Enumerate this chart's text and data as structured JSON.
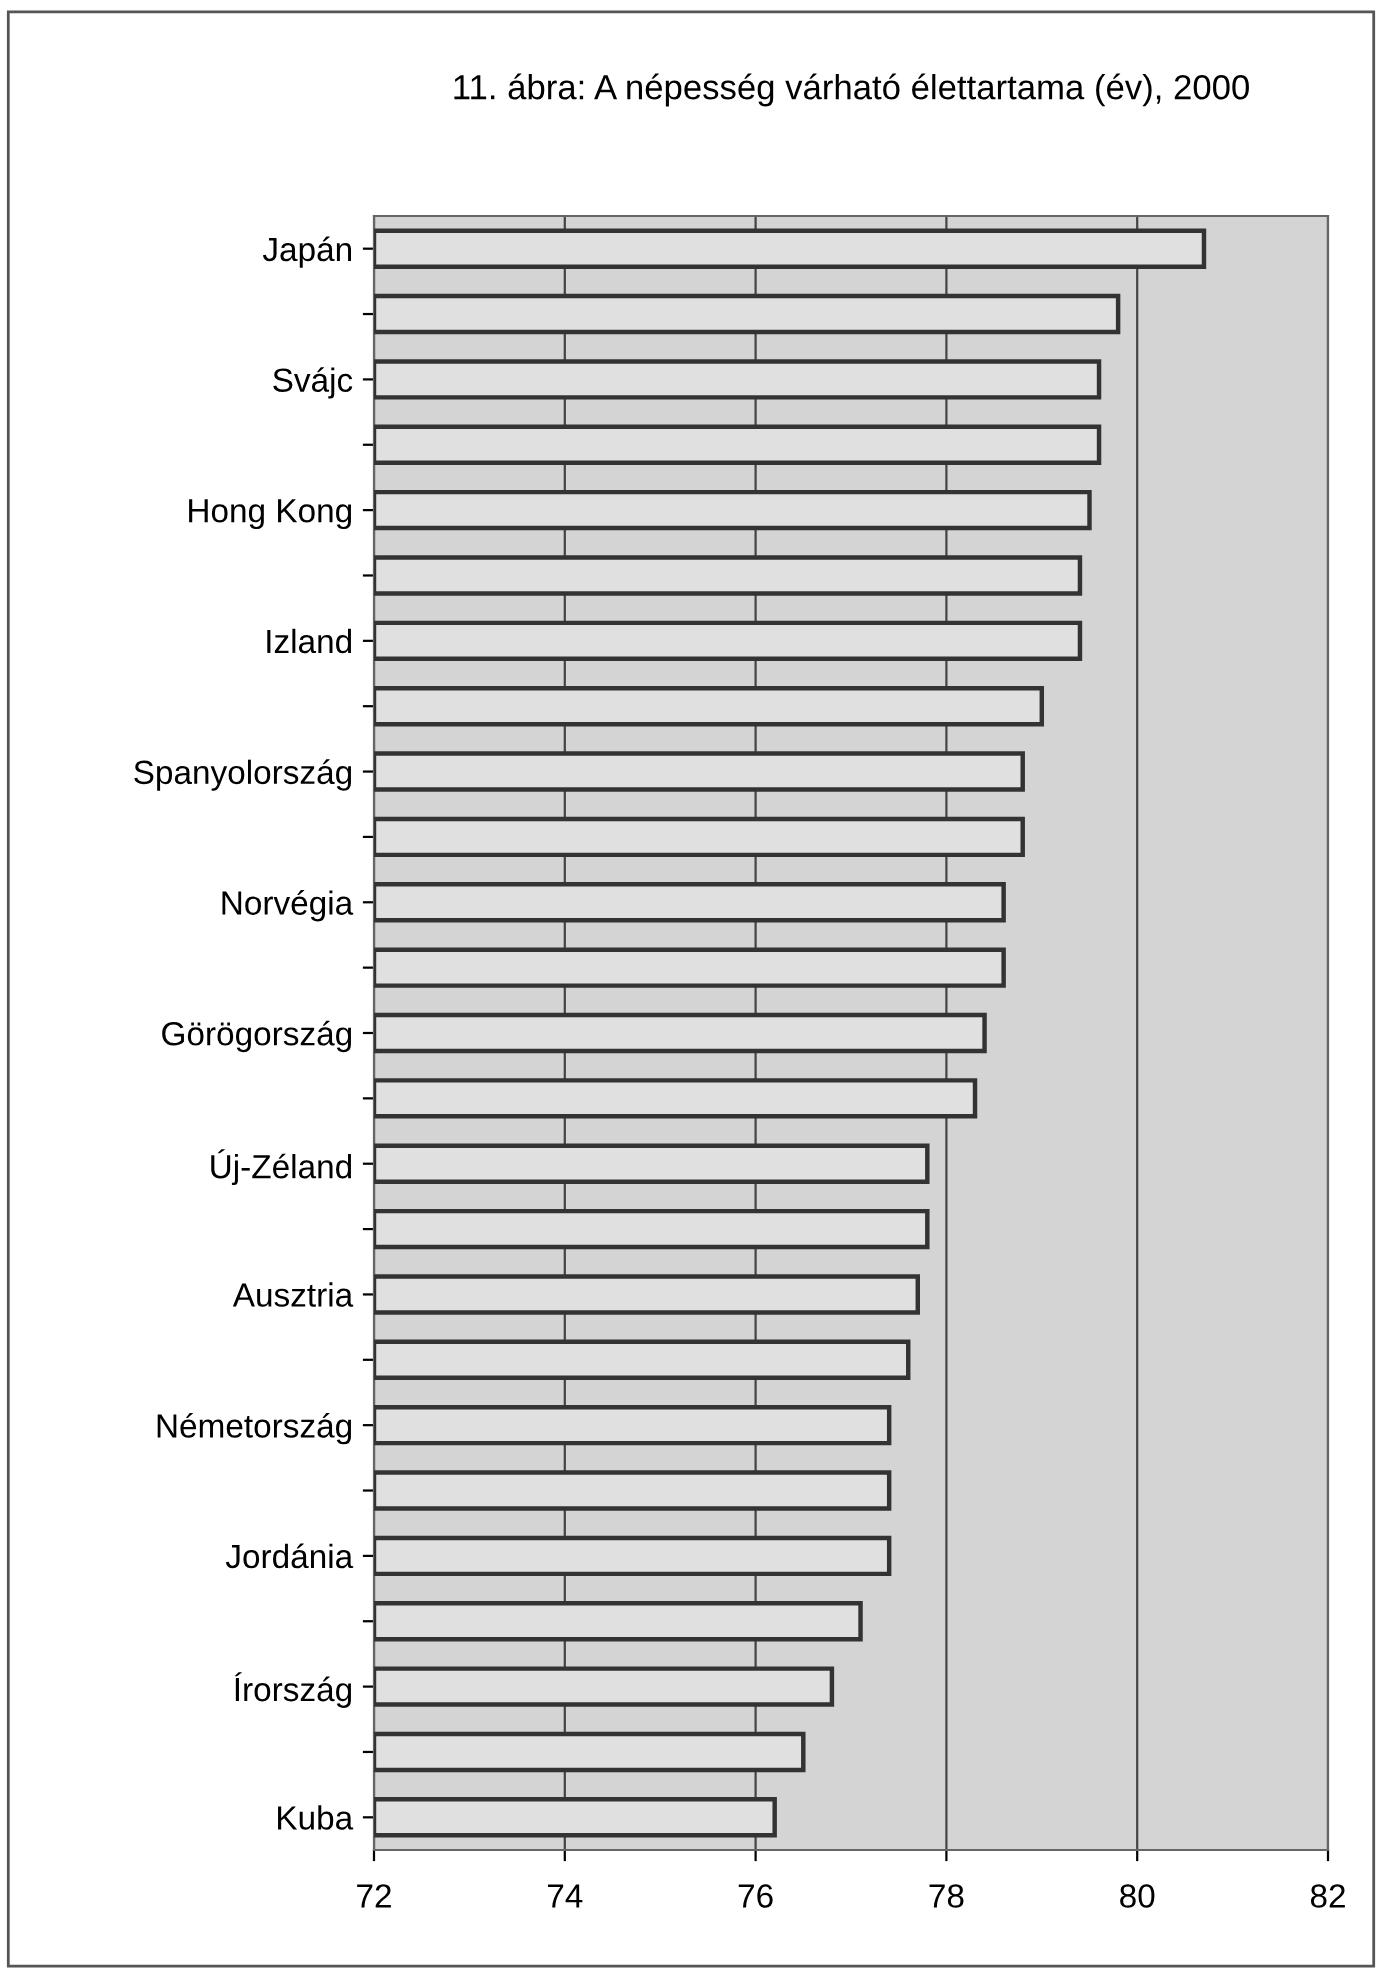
{
  "chart_data": {
    "type": "bar",
    "orientation": "horizontal",
    "title": "11. ábra: A népesség várható élettartama (év), 2000",
    "categories": [
      "Japán",
      null,
      "Svájc",
      null,
      "Hong Kong",
      null,
      "Izland",
      null,
      "Spanyolország",
      null,
      "Norvégia",
      null,
      "Görögország",
      null,
      "Új-Zéland",
      null,
      "Ausztria",
      null,
      "Németország",
      null,
      "Jordánia",
      null,
      "Írország",
      null,
      "Kuba"
    ],
    "values": [
      80.7,
      79.8,
      79.6,
      79.6,
      79.5,
      79.4,
      79.4,
      79.0,
      78.8,
      78.8,
      78.6,
      78.6,
      78.4,
      78.3,
      77.8,
      77.8,
      77.7,
      77.6,
      77.4,
      77.4,
      77.4,
      77.1,
      76.8,
      76.5,
      76.2
    ],
    "color": "#e0e0e0",
    "xlim": [
      72,
      82
    ],
    "xticks": [
      72,
      74,
      76,
      78,
      80,
      82
    ],
    "grid": "x"
  }
}
